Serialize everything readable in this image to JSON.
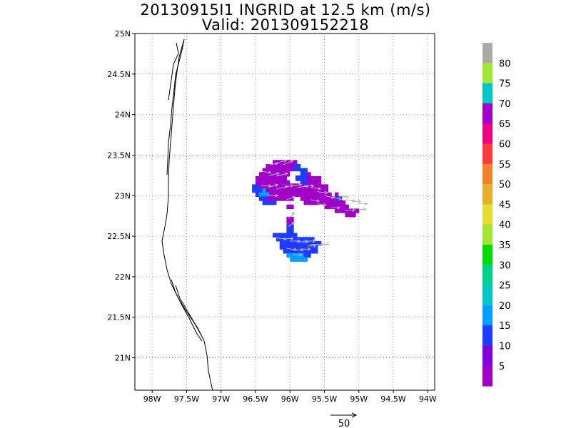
{
  "title": {
    "line1": "20130915I1 INGRID at 12.5 km (m/s)",
    "line2": "Valid: 201309152218"
  },
  "map": {
    "lon_range": [
      -98.25,
      -93.9
    ],
    "lat_range": [
      20.6,
      25.0
    ],
    "x_ticks": [
      {
        "lon": -98.0,
        "label": "98W"
      },
      {
        "lon": -97.5,
        "label": "97.5W"
      },
      {
        "lon": -97.0,
        "label": "97W"
      },
      {
        "lon": -96.5,
        "label": "96.5W"
      },
      {
        "lon": -96.0,
        "label": "96W"
      },
      {
        "lon": -95.5,
        "label": "95.5W"
      },
      {
        "lon": -95.0,
        "label": "95W"
      },
      {
        "lon": -94.5,
        "label": "94.5W"
      },
      {
        "lon": -94.0,
        "label": "94W"
      }
    ],
    "y_ticks": [
      {
        "lat": 25.0,
        "label": "25N"
      },
      {
        "lat": 24.5,
        "label": "24.5N"
      },
      {
        "lat": 24.0,
        "label": "24N"
      },
      {
        "lat": 23.5,
        "label": "23.5N"
      },
      {
        "lat": 23.0,
        "label": "23N"
      },
      {
        "lat": 22.5,
        "label": "22.5N"
      },
      {
        "lat": 22.0,
        "label": "22N"
      },
      {
        "lat": 21.5,
        "label": "21.5N"
      },
      {
        "lat": 21.0,
        "label": "21N"
      }
    ],
    "grid": "dotted",
    "coastline": "Mexican Gulf coast (Tamaulipas / Veracruz)"
  },
  "colorbar": {
    "placement": "right",
    "colors": [
      "#a000c8",
      "#8200dc",
      "#1e3cff",
      "#00a0ff",
      "#00c8c8",
      "#00d28c",
      "#00dc00",
      "#a0e632",
      "#e6dc32",
      "#e6af2d",
      "#f08228",
      "#fa3c3c",
      "#f00082",
      "#a000c8",
      "#00c8c8",
      "#a0e632",
      "#aaaaaa"
    ],
    "labels": [
      "5",
      "10",
      "15",
      "20",
      "25",
      "30",
      "35",
      "40",
      "45",
      "50",
      "55",
      "60",
      "65",
      "70",
      "75",
      "80"
    ]
  },
  "reference_vector": {
    "label": "50"
  },
  "wind_field": {
    "units": "m/s",
    "regions": [
      {
        "name": "northern hook",
        "lon_range": [
          -96.55,
          -95.95
        ],
        "lat_range": [
          22.95,
          23.45
        ],
        "speeds_mps": "5-15"
      },
      {
        "name": "eastern arm",
        "lon_range": [
          -96.0,
          -94.9
        ],
        "lat_range": [
          22.75,
          23.2
        ],
        "speeds_mps": "0-15"
      },
      {
        "name": "southern lobe",
        "lon_range": [
          -96.15,
          -95.55
        ],
        "lat_range": [
          22.2,
          22.55
        ],
        "speeds_mps": "10-20"
      }
    ]
  }
}
